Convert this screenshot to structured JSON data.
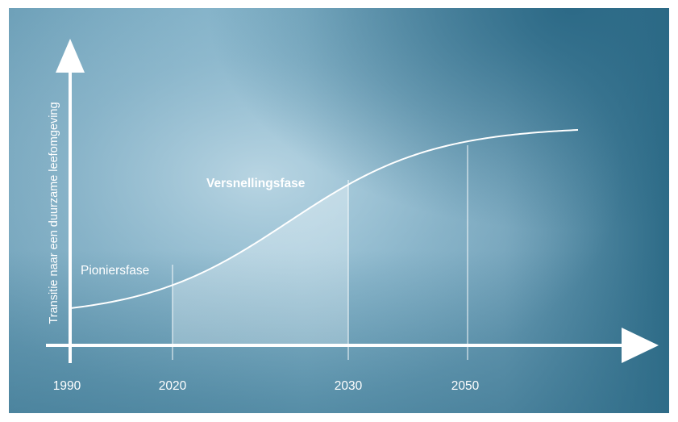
{
  "diagram": {
    "y_axis_label": "Transitie naar een duurzame leefomgeving",
    "phases": [
      {
        "label": "Pioniersfase",
        "emphasis": "normal"
      },
      {
        "label": "Versnellingsfase",
        "emphasis": "bold"
      }
    ],
    "timeline": [
      {
        "year": "1990"
      },
      {
        "year": "2020"
      },
      {
        "year": "2030"
      },
      {
        "year": "2050"
      }
    ],
    "highlighted_period": {
      "from": "2020",
      "to": "2030"
    },
    "curve_type": "s-curve",
    "colors": {
      "background_light": "#9cc3d6",
      "background_dark": "#2c6a86",
      "lines": "#ffffff",
      "highlight_fill": "#d6e7ef"
    }
  }
}
